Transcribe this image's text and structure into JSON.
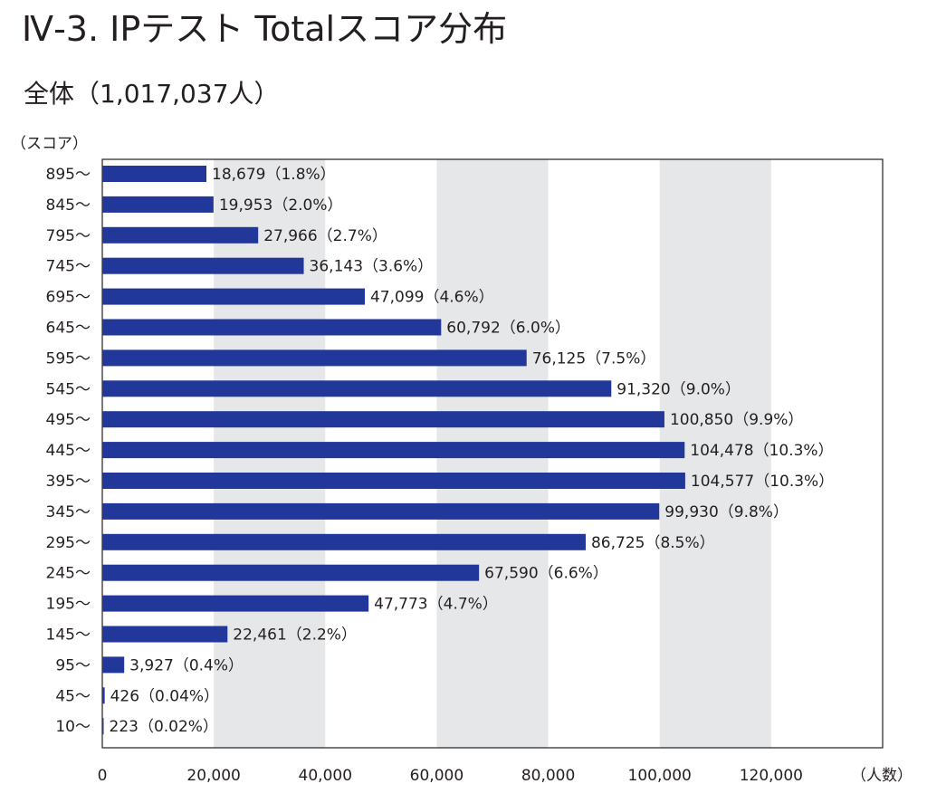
{
  "title": "Ⅳ-3. IPテスト Totalスコア分布",
  "subtitle": "全体（1,017,037人）",
  "chart_data": {
    "type": "bar",
    "orientation": "horizontal",
    "title": "Ⅳ-3. IPテスト Totalスコア分布",
    "subtitle": "全体（1,017,037人）",
    "ylabel": "（スコア）",
    "xlabel": "（人数）",
    "xlim": [
      0,
      140000
    ],
    "xticks": [
      0,
      20000,
      40000,
      60000,
      80000,
      100000,
      120000
    ],
    "xtick_labels": [
      "0",
      "20,000",
      "40,000",
      "60,000",
      "80,000",
      "100,000",
      "120,000"
    ],
    "grid": "alternating vertical bands",
    "band_color": "#e6e7e8",
    "bar_color": "#22379a",
    "categories": [
      "895～",
      "845～",
      "795～",
      "745～",
      "695～",
      "645～",
      "595～",
      "545～",
      "495～",
      "445～",
      "395～",
      "345～",
      "295～",
      "245～",
      "195～",
      "145～",
      "95～",
      "45～",
      "10～"
    ],
    "values": [
      18679,
      19953,
      27966,
      36143,
      47099,
      60792,
      76125,
      91320,
      100850,
      104478,
      104577,
      99930,
      86725,
      67590,
      47773,
      22461,
      3927,
      426,
      223
    ],
    "data_labels": [
      "18,679（1.8%）",
      "19,953（2.0%）",
      "27,966（2.7%）",
      "36,143（3.6%）",
      "47,099（4.6%）",
      "60,792（6.0%）",
      "76,125（7.5%）",
      "91,320（9.0%）",
      "100,850（9.9%）",
      "104,478（10.3%）",
      "104,577（10.3%）",
      "99,930（9.8%）",
      "86,725（8.5%）",
      "67,590（6.6%）",
      "47,773（4.7%）",
      "22,461（2.2%）",
      "3,927（0.4%）",
      "426（0.04%）",
      "223（0.02%）"
    ]
  }
}
